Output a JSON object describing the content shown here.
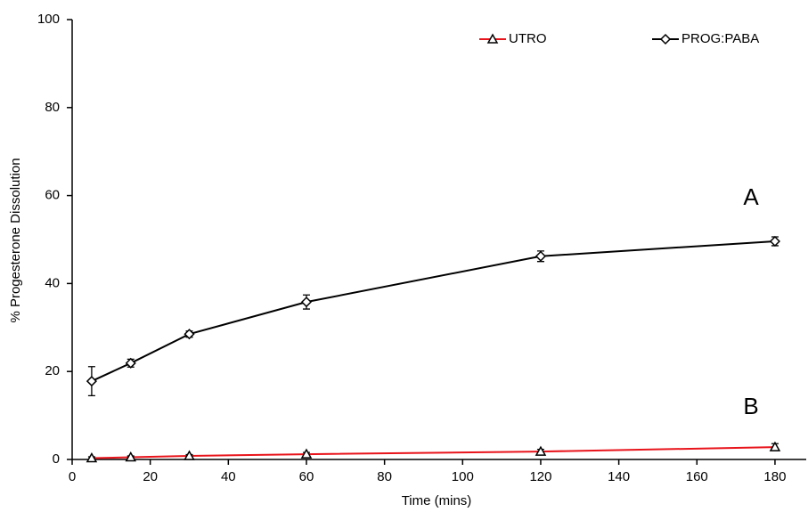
{
  "chart_data": {
    "type": "line",
    "x_label": "Time (mins)",
    "y_label": "% Progesterone Dissolution",
    "x": [
      5,
      15,
      30,
      60,
      120,
      180
    ],
    "series": [
      {
        "name": "UTRO",
        "color": "#e8141b",
        "marker": "triangle",
        "values": [
          0.3,
          0.5,
          0.8,
          1.2,
          1.8,
          2.8
        ],
        "errors": [
          0.3,
          0.3,
          0.3,
          0.4,
          0.5,
          0.8
        ]
      },
      {
        "name": "PROG:PABA",
        "color": "#000000",
        "marker": "diamond",
        "values": [
          17.8,
          21.9,
          28.5,
          35.8,
          46.2,
          49.6
        ],
        "errors": [
          3.3,
          0.9,
          0.7,
          1.6,
          1.2,
          1.0
        ]
      }
    ],
    "annotations": [
      "A",
      "B"
    ],
    "xlim": [
      0,
      188
    ],
    "xticks": [
      0,
      20,
      40,
      60,
      80,
      100,
      120,
      140,
      160,
      180
    ],
    "ylim": [
      0,
      100
    ],
    "yticks": [
      0,
      20,
      40,
      60,
      80,
      100
    ],
    "grid": false,
    "legend": "top-right"
  }
}
